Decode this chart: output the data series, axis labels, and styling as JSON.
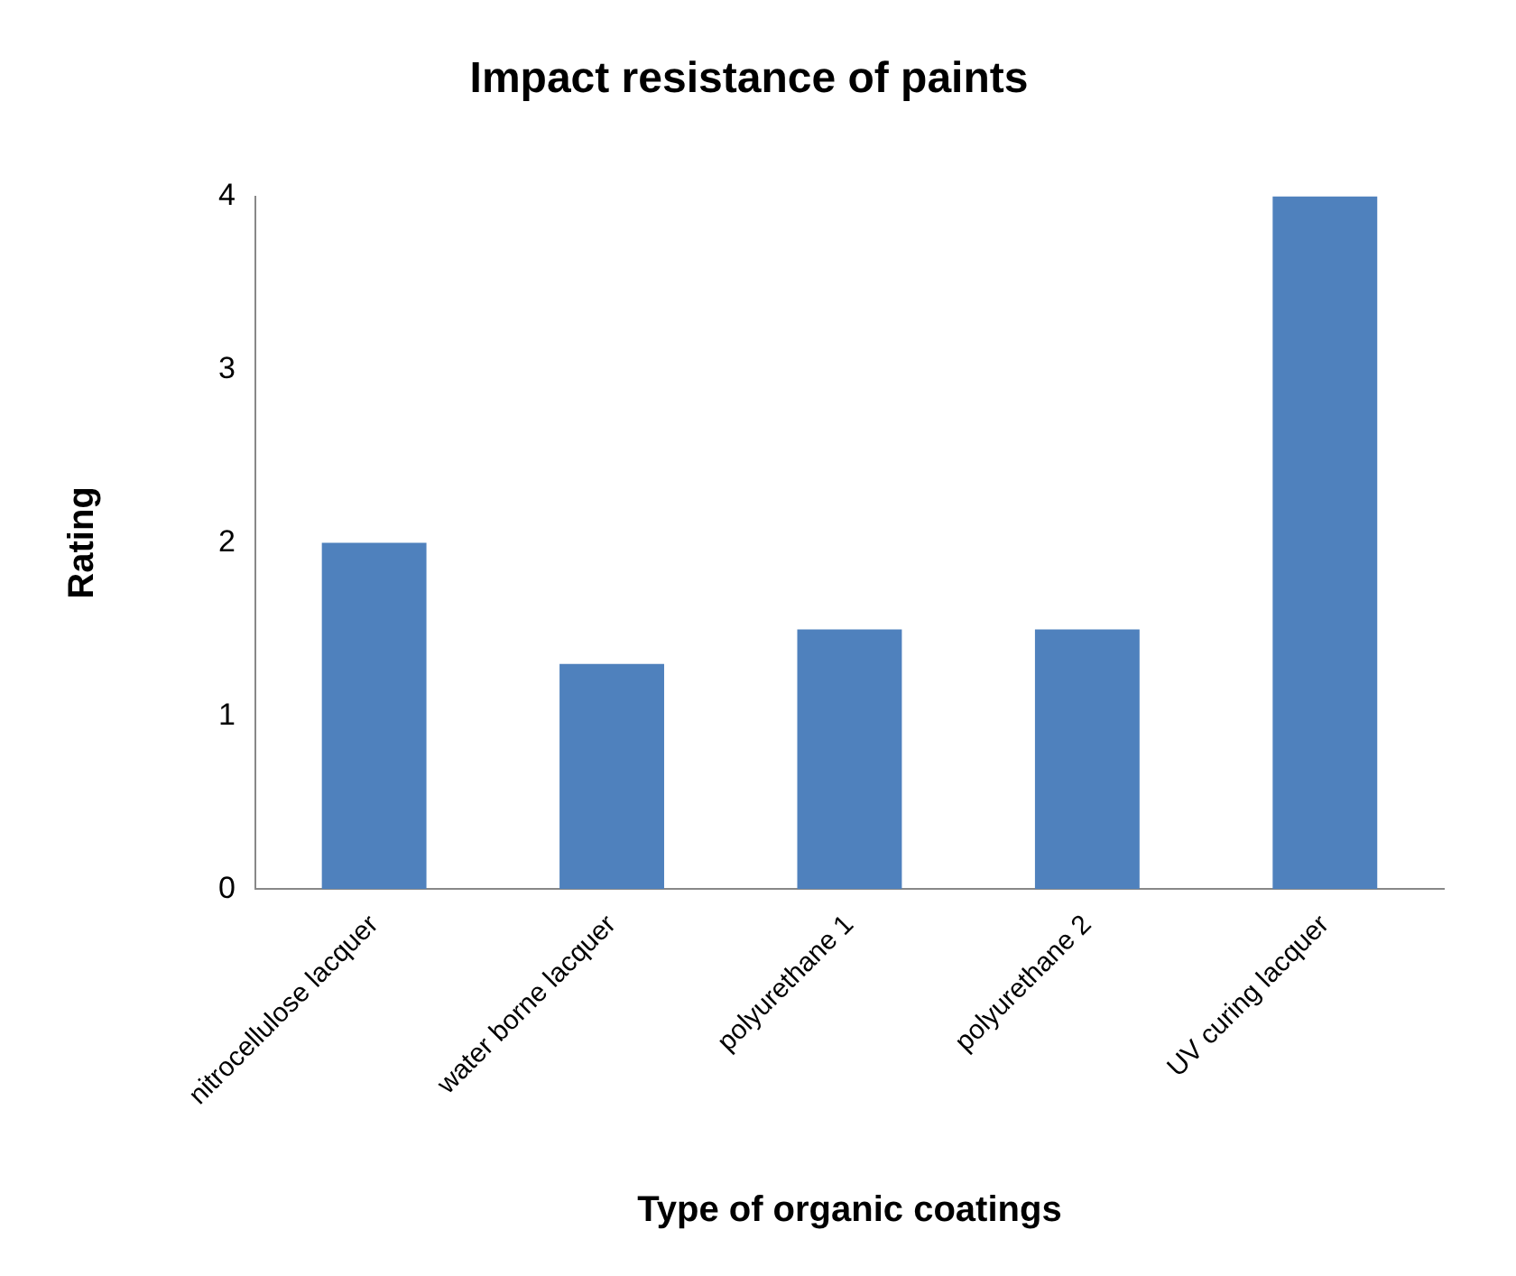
{
  "chart_data": {
    "type": "bar",
    "title": "Impact resistance of paints",
    "xlabel": "Type of organic coatings",
    "ylabel": "Rating",
    "categories": [
      "nitrocellulose lacquer",
      "water borne lacquer",
      "polyurethane 1",
      "polyurethane 2",
      "UV curing lacquer"
    ],
    "values": [
      2,
      1.3,
      1.5,
      1.5,
      4
    ],
    "color": "#4f81bd",
    "ylim": [
      0,
      4
    ],
    "yticks": [
      0,
      1,
      2,
      3,
      4
    ],
    "grid": false
  }
}
